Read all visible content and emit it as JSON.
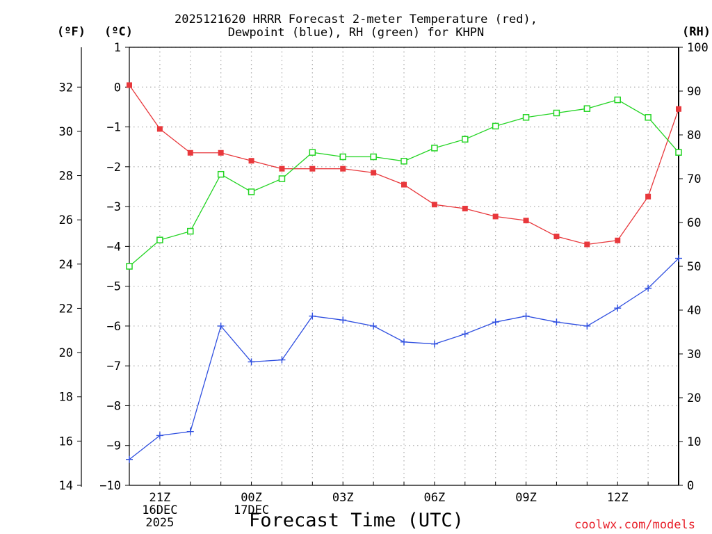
{
  "chart_data": {
    "type": "line",
    "title_line1": "2025121620 HRRR Forecast 2-meter Temperature (red),",
    "title_line2": "Dewpoint (blue), RH (green) for KHPN",
    "unit_f": "(ºF)",
    "unit_c": "(ºC)",
    "unit_rh": "(RH)",
    "xlabel": "Forecast Time (UTC)",
    "credit": "coolwx.com/models",
    "hours": [
      20,
      21,
      22,
      23,
      24,
      25,
      26,
      27,
      28,
      29,
      30,
      31,
      32,
      33,
      34,
      35,
      36,
      37,
      38
    ],
    "xticks": [
      {
        "h": 21,
        "lines": [
          "21Z",
          "16DEC",
          "2025"
        ]
      },
      {
        "h": 24,
        "lines": [
          "00Z",
          "17DEC"
        ]
      },
      {
        "h": 27,
        "lines": [
          "03Z"
        ]
      },
      {
        "h": 30,
        "lines": [
          "06Z"
        ]
      },
      {
        "h": 33,
        "lines": [
          "09Z"
        ]
      },
      {
        "h": 36,
        "lines": [
          "12Z"
        ]
      }
    ],
    "xlim": [
      20,
      38
    ],
    "ylim_c": [
      -10,
      1
    ],
    "ylim_rh": [
      0,
      100
    ],
    "yticks_c": [
      1,
      0,
      -1,
      -2,
      -3,
      -4,
      -5,
      -6,
      -7,
      -8,
      -9,
      -10
    ],
    "yticks_c_labels": [
      "1",
      "0",
      "−1",
      "−2",
      "−3",
      "−4",
      "−5",
      "−6",
      "−7",
      "−8",
      "−9",
      "−10"
    ],
    "yticks_f": [
      32,
      30,
      28,
      26,
      24,
      22,
      20,
      18,
      16,
      14
    ],
    "yticks_rh": [
      100,
      90,
      80,
      70,
      60,
      50,
      40,
      30,
      20,
      10,
      0
    ],
    "series": [
      {
        "name": "Temperature",
        "axis": "c",
        "color": "#e8383c",
        "marker": "filled-square",
        "values": [
          0.05,
          -1.05,
          -1.65,
          -1.65,
          -1.85,
          -2.05,
          -2.05,
          -2.05,
          -2.15,
          -2.45,
          -2.95,
          -3.05,
          -3.25,
          -3.35,
          -3.75,
          -3.95,
          -3.85,
          -2.75,
          -0.55
        ]
      },
      {
        "name": "Dewpoint",
        "axis": "c",
        "color": "#2f4fe0",
        "marker": "plus",
        "values": [
          -9.35,
          -8.75,
          -8.65,
          -6.0,
          -6.9,
          -6.85,
          -5.75,
          -5.85,
          -6.0,
          -6.4,
          -6.45,
          -6.2,
          -5.9,
          -5.75,
          -5.9,
          -6.0,
          -5.55,
          -5.05,
          -4.3
        ]
      },
      {
        "name": "RH",
        "axis": "rh",
        "color": "#22d422",
        "marker": "open-square",
        "values": [
          50,
          56,
          58,
          71,
          67,
          70,
          76,
          75,
          75,
          74,
          77,
          79,
          82,
          84,
          85,
          86,
          88,
          84,
          76
        ]
      }
    ]
  }
}
